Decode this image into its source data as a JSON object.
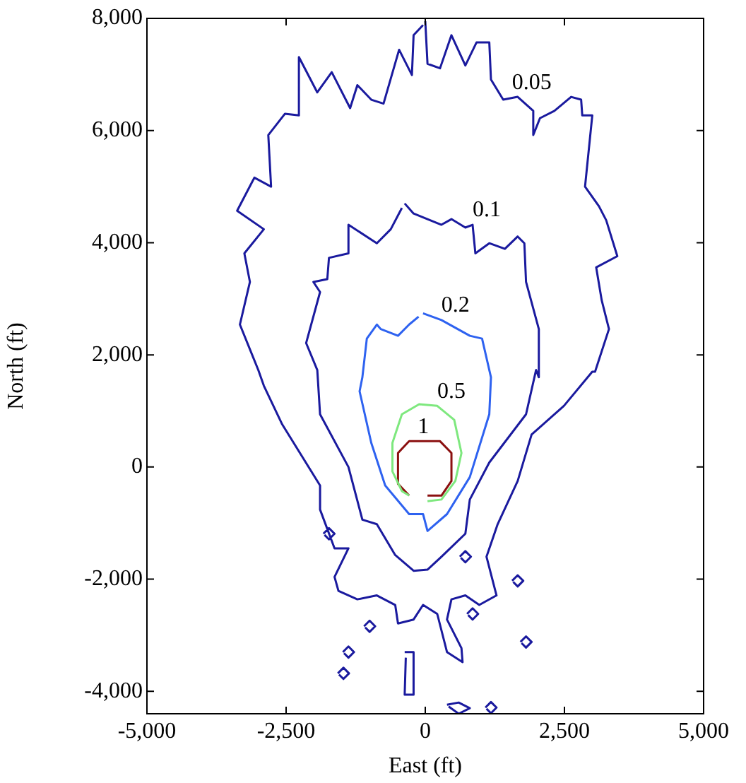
{
  "chart_data": {
    "type": "line",
    "xlabel": "East (ft)",
    "ylabel": "North (ft)",
    "xlim": [
      -5000,
      5000
    ],
    "xticks": [
      {
        "value": -5000,
        "label": "-5,000"
      },
      {
        "value": -2500,
        "label": "-2,500"
      },
      0,
      {
        "value": 2500,
        "label": "2,500"
      },
      {
        "value": 5000,
        "label": "5,000"
      }
    ],
    "ylim": [
      -4400,
      8000
    ],
    "yticks": [
      {
        "value": -4000,
        "label": "-4,000"
      },
      {
        "value": -2000,
        "label": "-2,000"
      },
      0,
      {
        "value": 2000,
        "label": "2,000"
      },
      {
        "value": 4000,
        "label": "4,000"
      },
      {
        "value": 6000,
        "label": "6,000"
      },
      {
        "value": 8000,
        "label": "8,000"
      }
    ],
    "grid": false,
    "legend": false,
    "marker": "none",
    "line_style": "solid",
    "series": [
      {
        "color": "#1a1a9e",
        "x": [
          0,
          40,
          265,
          470,
          720,
          920,
          1150,
          1180,
          1400,
          1660,
          1940,
          1940,
          2060,
          2320,
          2620,
          2800,
          2820,
          3000,
          2870,
          3120,
          3250,
          3450,
          3070,
          3170,
          3300,
          3050,
          3000,
          2490,
          1910,
          1660,
          1300,
          1100,
          1280,
          970,
          720,
          470,
          390,
          650,
          670,
          390,
          215,
          -40,
          -210,
          -490,
          -540,
          -870,
          -1220,
          -1560,
          -1630,
          -1380,
          -1630,
          -1890,
          -1890,
          -2570,
          -2900,
          -3000,
          -3330,
          -3150,
          -3250,
          -2900,
          -3380,
          -3070,
          -2770,
          -2820,
          -2520,
          -2270,
          -2270,
          -1940,
          -1680,
          -1350,
          -1220,
          -970,
          -750,
          -470,
          -240,
          -210,
          -40,
          null,
          -370,
          -210,
          -210,
          -370,
          -350,
          null,
          390,
          600,
          800,
          600,
          420,
          null,
          -1100,
          -1000,
          -900,
          -1000,
          -1080,
          null,
          -1480,
          -1380,
          -1280,
          -1380,
          -1460,
          null,
          -1570,
          -1470,
          -1370,
          -1470,
          -1550,
          null,
          750,
          850,
          950,
          850,
          770,
          null,
          1560,
          1660,
          1760,
          1660,
          1580,
          null,
          1080,
          1180,
          1280,
          1180,
          1100,
          null,
          -1830,
          -1730,
          -1630,
          -1730,
          -1810,
          null,
          620,
          720,
          820,
          720,
          640,
          null,
          1710,
          1810,
          1910,
          1810,
          1730
        ],
        "values": [
          7950,
          7190,
          7110,
          7700,
          7160,
          7570,
          7570,
          6910,
          6550,
          6600,
          6350,
          5920,
          6220,
          6350,
          6600,
          6550,
          6270,
          6270,
          5000,
          4650,
          4400,
          3760,
          3560,
          2970,
          2460,
          1700,
          1700,
          1090,
          580,
          -250,
          -1020,
          -1600,
          -2290,
          -2460,
          -2290,
          -2360,
          -2720,
          -3230,
          -3480,
          -3300,
          -2620,
          -2460,
          -2720,
          -2790,
          -2460,
          -2290,
          -2360,
          -2210,
          -1960,
          -1450,
          -1450,
          -760,
          -330,
          760,
          1450,
          1730,
          2540,
          3300,
          3810,
          4240,
          4570,
          5160,
          5000,
          5920,
          6300,
          6270,
          7310,
          6680,
          7040,
          6400,
          6810,
          6550,
          6480,
          7440,
          6990,
          7700,
          7880,
          null,
          -3300,
          -3300,
          -4060,
          -4060,
          -3400,
          null,
          -4240,
          -4200,
          -4300,
          -4400,
          -4270,
          null,
          -2840,
          -2740,
          -2840,
          -2940,
          -2860,
          null,
          -3300,
          -3200,
          -3300,
          -3400,
          -3320,
          null,
          -3680,
          -3580,
          -3680,
          -3780,
          -3700,
          null,
          -2620,
          -2520,
          -2620,
          -2720,
          -2640,
          null,
          -2030,
          -1930,
          -2030,
          -2130,
          -2050,
          null,
          -4290,
          -4190,
          -4290,
          -4390,
          -4310,
          null,
          -1190,
          -1090,
          -1190,
          -1290,
          -1210,
          null,
          -1600,
          -1500,
          -1600,
          -1700,
          -1620,
          null,
          -3120,
          -3020,
          -3120,
          -3220,
          -3140
        ]
      },
      {
        "color": "#1a1a9e",
        "x": [
          -370,
          -210,
          290,
          470,
          720,
          850,
          900,
          1150,
          1430,
          1660,
          1780,
          1810,
          2040,
          2040,
          1990,
          1810,
          1150,
          800,
          720,
          290,
          40,
          -210,
          -540,
          -870,
          -1130,
          -1380,
          -1890,
          -1940,
          -2140,
          -1890,
          -2010,
          -1760,
          -1730,
          -1380,
          -1380,
          -870,
          -620,
          -420
        ],
        "values": [
          4700,
          4520,
          4320,
          4420,
          4270,
          4320,
          3810,
          3990,
          3890,
          4110,
          3990,
          3300,
          2460,
          1600,
          1730,
          940,
          80,
          -580,
          -1190,
          -1600,
          -1830,
          -1850,
          -1570,
          -1020,
          -940,
          0,
          940,
          1730,
          2210,
          3120,
          3300,
          3350,
          3730,
          3810,
          4320,
          3990,
          4240,
          4620
        ]
      },
      {
        "color": "#2e62f0",
        "x": [
          -40,
          290,
          800,
          1020,
          1180,
          1150,
          800,
          390,
          40,
          -40,
          -290,
          -720,
          -970,
          -1180,
          -1130,
          -1050,
          -870,
          -800,
          -490,
          -290,
          -120
        ],
        "values": [
          2740,
          2620,
          2340,
          2290,
          1600,
          940,
          -180,
          -840,
          -1140,
          -840,
          -840,
          -330,
          430,
          1350,
          1600,
          2290,
          2540,
          2460,
          2340,
          2540,
          2680
        ]
      },
      {
        "color": "#7ee87e",
        "x": [
          40,
          290,
          540,
          650,
          520,
          215,
          -110,
          -420,
          -590,
          -590,
          -420,
          -290
        ],
        "values": [
          -610,
          -580,
          -250,
          250,
          840,
          1090,
          1120,
          940,
          430,
          -80,
          -430,
          -510
        ]
      },
      {
        "color": "#8b1010",
        "x": [
          -290,
          -490,
          -490,
          -290,
          265,
          470,
          470,
          290,
          40
        ],
        "values": [
          -510,
          -300,
          250,
          460,
          460,
          250,
          -250,
          -510,
          -510
        ]
      }
    ],
    "annotations": [
      {
        "text": "0.05",
        "x": 1660,
        "y": 6600
      },
      {
        "text": "0.1",
        "x": 850,
        "y": 4320
      },
      {
        "text": "0.2",
        "x": 290,
        "y": 2620
      },
      {
        "text": "0.5",
        "x": 215,
        "y": 1090
      },
      {
        "text": "1",
        "x": -290,
        "y": 460
      }
    ]
  }
}
